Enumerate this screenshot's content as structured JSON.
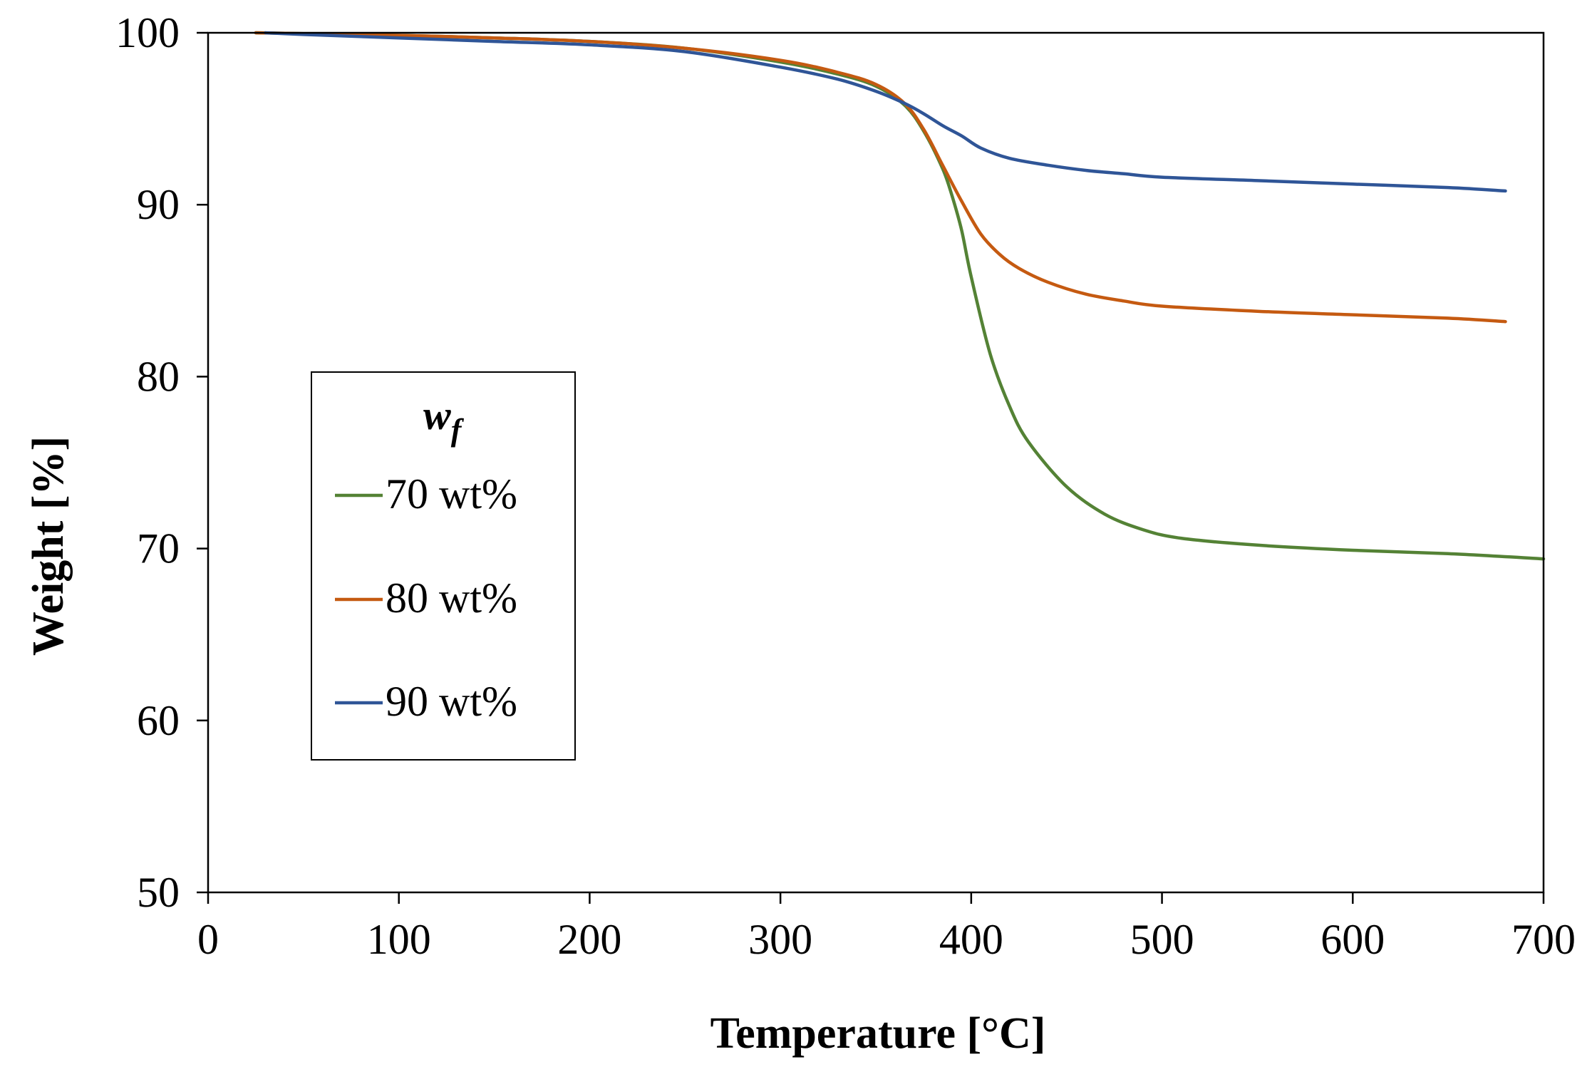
{
  "chart_data": {
    "type": "line",
    "xlabel": "Temperature [°C]",
    "ylabel": "Weight [%]",
    "xlim": [
      0,
      700
    ],
    "ylim": [
      50,
      100
    ],
    "xticks": [
      0,
      100,
      200,
      300,
      400,
      500,
      600,
      700
    ],
    "yticks": [
      50,
      60,
      70,
      80,
      90,
      100
    ],
    "grid": false,
    "legend": {
      "title_main": "w",
      "title_sub": "f",
      "placement": "left-center"
    },
    "series": [
      {
        "name": "70 wt%",
        "color": "#548235",
        "x": [
          25,
          50,
          100,
          150,
          200,
          250,
          300,
          330,
          350,
          365,
          375,
          385,
          390,
          395,
          400,
          410,
          420,
          430,
          450,
          470,
          490,
          510,
          550,
          600,
          650,
          700
        ],
        "y": [
          100,
          99.95,
          99.85,
          99.7,
          99.5,
          99.1,
          98.3,
          97.6,
          96.9,
          95.8,
          94.3,
          92.1,
          90.5,
          88.5,
          85.8,
          81.3,
          78.3,
          76.2,
          73.6,
          72.0,
          71.1,
          70.6,
          70.2,
          69.9,
          69.7,
          69.4
        ]
      },
      {
        "name": "80 wt%",
        "color": "#C55A11",
        "x": [
          25,
          50,
          100,
          150,
          200,
          250,
          300,
          330,
          350,
          365,
          375,
          385,
          395,
          405,
          415,
          425,
          440,
          460,
          480,
          500,
          550,
          600,
          650,
          680
        ],
        "y": [
          100,
          99.95,
          99.85,
          99.7,
          99.5,
          99.1,
          98.4,
          97.7,
          97.0,
          95.9,
          94.4,
          92.3,
          90.2,
          88.3,
          87.1,
          86.3,
          85.5,
          84.8,
          84.4,
          84.1,
          83.8,
          83.6,
          83.4,
          83.2
        ]
      },
      {
        "name": "90 wt%",
        "color": "#2F5597",
        "x": [
          30,
          50,
          100,
          150,
          200,
          250,
          300,
          330,
          350,
          365,
          375,
          385,
          395,
          405,
          420,
          440,
          460,
          480,
          500,
          550,
          600,
          650,
          680
        ],
        "y": [
          100,
          99.9,
          99.7,
          99.5,
          99.3,
          98.9,
          98.0,
          97.3,
          96.6,
          95.9,
          95.3,
          94.6,
          94.0,
          93.3,
          92.7,
          92.3,
          92.0,
          91.8,
          91.6,
          91.4,
          91.2,
          91.0,
          90.8
        ]
      }
    ]
  }
}
